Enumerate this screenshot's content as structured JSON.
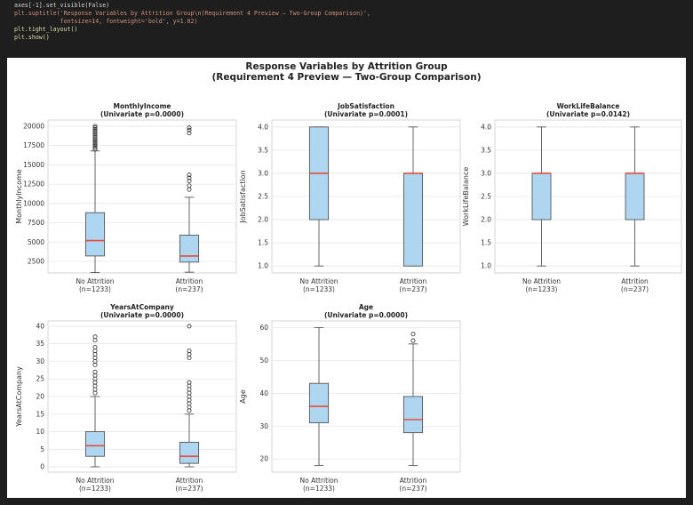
{
  "code": {
    "lines": [
      "axes[-1].set_visible(False)",
      "plt.suptitle('Response Variables by Attrition Group\\n(Requirement 4 Preview — Two-Group Comparison)',",
      "             fontsize=14, fontweight='bold', y=1.02)",
      "plt.tight_layout()",
      "plt.show()"
    ],
    "colors": {
      "text": "#d4d4d4",
      "string": "#ce9178",
      "keyword": "#9cdcfe",
      "function": "#dcdcaa",
      "background": "#1e1e1e"
    }
  },
  "figure": {
    "title_line1": "Response Variables by Attrition Group",
    "title_line2": "(Requirement 4 Preview — Two-Group Comparison)",
    "box_color": "#aed6f1",
    "median_color": "#e74c3c",
    "outline_color": "#555555"
  },
  "chart_data": [
    {
      "type": "box",
      "title": "MonthlyIncome",
      "subtitle": "(Univariate p=0.0000)",
      "ylabel": "MonthlyIncome",
      "categories": [
        "No Attrition\n(n=1233)",
        "Attrition\n(n=237)"
      ],
      "ylim": [
        1000,
        20800
      ],
      "yticks": [
        2500,
        5000,
        7500,
        10000,
        12500,
        15000,
        17500,
        20000
      ],
      "ytick_labels": [
        "2500",
        "5000",
        "7500",
        "10000",
        "12500",
        "15000",
        "17500",
        "20000"
      ],
      "boxes": [
        {
          "whisker_low": 1050,
          "q1": 3200,
          "median": 5200,
          "q3": 8800,
          "whisker_high": 16800,
          "outliers": [
            17000,
            17200,
            17400,
            17600,
            17800,
            18000,
            18200,
            18400,
            18600,
            18800,
            19000,
            19200,
            19400,
            19600,
            19800,
            20000
          ]
        },
        {
          "whisker_low": 1100,
          "q1": 2400,
          "median": 3200,
          "q3": 5900,
          "whisker_high": 10800,
          "outliers": [
            11800,
            12300,
            12900,
            13300,
            13700,
            19100,
            19500,
            19800
          ]
        }
      ]
    },
    {
      "type": "box",
      "title": "JobSatisfaction",
      "subtitle": "(Univariate p=0.0001)",
      "ylabel": "JobSatisfaction",
      "categories": [
        "No Attrition\n(n=1233)",
        "Attrition\n(n=237)"
      ],
      "ylim": [
        0.85,
        4.15
      ],
      "yticks": [
        1.0,
        1.5,
        2.0,
        2.5,
        3.0,
        3.5,
        4.0
      ],
      "ytick_labels": [
        "1.0",
        "1.5",
        "2.0",
        "2.5",
        "3.0",
        "3.5",
        "4.0"
      ],
      "boxes": [
        {
          "whisker_low": 1,
          "q1": 2,
          "median": 3,
          "q3": 4,
          "whisker_high": 4,
          "outliers": []
        },
        {
          "whisker_low": 1,
          "q1": 1,
          "median": 3,
          "q3": 3,
          "whisker_high": 4,
          "outliers": []
        }
      ]
    },
    {
      "type": "box",
      "title": "WorkLifeBalance",
      "subtitle": "(Univariate p=0.0142)",
      "ylabel": "WorkLifeBalance",
      "categories": [
        "No Attrition\n(n=1233)",
        "Attrition\n(n=237)"
      ],
      "ylim": [
        0.85,
        4.15
      ],
      "yticks": [
        1.0,
        1.5,
        2.0,
        2.5,
        3.0,
        3.5,
        4.0
      ],
      "ytick_labels": [
        "1.0",
        "1.5",
        "2.0",
        "2.5",
        "3.0",
        "3.5",
        "4.0"
      ],
      "boxes": [
        {
          "whisker_low": 1,
          "q1": 2,
          "median": 3,
          "q3": 3,
          "whisker_high": 4,
          "outliers": []
        },
        {
          "whisker_low": 1,
          "q1": 2,
          "median": 3,
          "q3": 3,
          "whisker_high": 4,
          "outliers": []
        }
      ]
    },
    {
      "type": "box",
      "title": "YearsAtCompany",
      "subtitle": "(Univariate p=0.0000)",
      "ylabel": "YearsAtCompany",
      "categories": [
        "No Attrition\n(n=1233)",
        "Attrition\n(n=237)"
      ],
      "ylim": [
        -1.5,
        41.5
      ],
      "yticks": [
        0,
        5,
        10,
        15,
        20,
        25,
        30,
        35,
        40
      ],
      "ytick_labels": [
        "0",
        "5",
        "10",
        "15",
        "20",
        "25",
        "30",
        "35",
        "40"
      ],
      "boxes": [
        {
          "whisker_low": 0,
          "q1": 3,
          "median": 6,
          "q3": 10,
          "whisker_high": 20,
          "outliers": [
            21,
            22,
            23,
            24,
            25,
            26,
            27,
            29,
            30,
            31,
            32,
            33,
            34,
            36,
            37
          ]
        },
        {
          "whisker_low": 0,
          "q1": 1,
          "median": 3,
          "q3": 7,
          "whisker_high": 15,
          "outliers": [
            16,
            17,
            18,
            19,
            20,
            21,
            22,
            23,
            24,
            31,
            32,
            33,
            40
          ]
        }
      ]
    },
    {
      "type": "box",
      "title": "Age",
      "subtitle": "(Univariate p=0.0000)",
      "ylabel": "Age",
      "categories": [
        "No Attrition\n(n=1233)",
        "Attrition\n(n=237)"
      ],
      "ylim": [
        16,
        62
      ],
      "yticks": [
        20,
        30,
        40,
        50,
        60
      ],
      "ytick_labels": [
        "20",
        "30",
        "40",
        "50",
        "60"
      ],
      "boxes": [
        {
          "whisker_low": 18,
          "q1": 31,
          "median": 36,
          "q3": 43,
          "whisker_high": 60,
          "outliers": []
        },
        {
          "whisker_low": 18,
          "q1": 28,
          "median": 32,
          "q3": 39,
          "whisker_high": 55,
          "outliers": [
            56,
            58
          ]
        }
      ]
    }
  ]
}
